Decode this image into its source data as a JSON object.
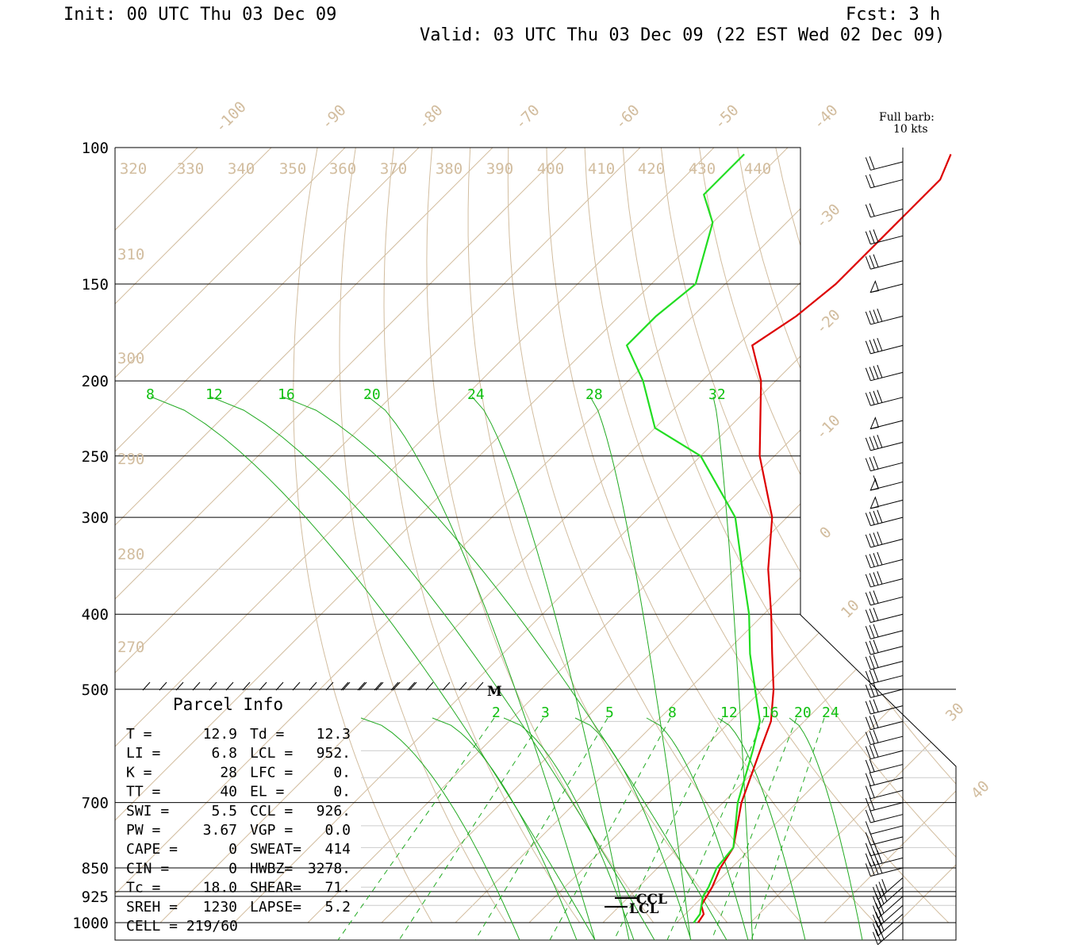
{
  "header": {
    "init": "Init: 00 UTC Thu 03 Dec 09",
    "fcst": "Fcst:    3 h",
    "valid": "Valid: 03 UTC Thu 03 Dec 09 (22 EST Wed 02 Dec 09)"
  },
  "barb_legend": {
    "line1": "Full barb:",
    "line2": "10 kts"
  },
  "pressure_labels": [
    "100",
    "150",
    "200",
    "250",
    "300",
    "400",
    "500",
    "700",
    "850",
    "925",
    "1000"
  ],
  "isotherm_labels": [
    "-100",
    "-90",
    "-80",
    "-70",
    "-60",
    "-50",
    "-40",
    "-30",
    "-20",
    "-10",
    "0",
    "10",
    "30",
    "40"
  ],
  "theta_top_labels": [
    "320",
    "330",
    "340",
    "350",
    "360",
    "370",
    "380",
    "390",
    "400",
    "410",
    "420",
    "430",
    "440"
  ],
  "theta_left_labels": [
    "310",
    "300",
    "290",
    "280",
    "270"
  ],
  "mixing_ratio_upper": [
    "8",
    "12",
    "16",
    "20",
    "24",
    "28",
    "32"
  ],
  "mixing_ratio_lower": [
    "2",
    "3",
    "5",
    "8",
    "12",
    "16",
    "20",
    "24"
  ],
  "markers": {
    "m": "M",
    "ccl": "CCL",
    "lcl": "LCL"
  },
  "parcel": {
    "title": "Parcel Info",
    "rows": [
      [
        "T  =",
        "12.9",
        "Td =",
        "12.3"
      ],
      [
        "LI =",
        "6.8",
        "LCL =",
        "952."
      ],
      [
        "K  =",
        "28",
        "LFC =",
        "0."
      ],
      [
        "TT =",
        "40",
        "EL  =",
        "0."
      ],
      [
        "SWI =",
        "5.5",
        "CCL =",
        "926."
      ],
      [
        "PW =",
        "3.67",
        "VGP =",
        "0.0"
      ],
      [
        "CAPE =",
        "0",
        "SWEAT=",
        "414"
      ],
      [
        "CIN =",
        "0",
        "HWBZ=",
        "3278."
      ],
      [
        "Tc =",
        "18.0",
        "SHEAR=",
        "71."
      ],
      [
        "SREH =",
        "1230",
        "LAPSE=",
        "5.2"
      ],
      [
        "CELL = 219/60",
        "",
        "",
        ""
      ]
    ]
  },
  "colors": {
    "temperature": "#dd0000",
    "dewpoint": "#22dd22",
    "background_lines": "#d2bd9f",
    "mixing_ratio": "#10c010"
  },
  "chart_data": {
    "type": "line",
    "title": "",
    "xlabel": "",
    "ylabel": "",
    "y_scale": "log-pressure (hPa)",
    "ylim": [
      1000,
      100
    ],
    "series": [
      {
        "name": "",
        "kind": "temperature_C",
        "points": [
          [
            1000,
            12.9
          ],
          [
            975,
            12.5
          ],
          [
            950,
            11.0
          ],
          [
            925,
            10.5
          ],
          [
            900,
            10.0
          ],
          [
            850,
            8.5
          ],
          [
            800,
            7.5
          ],
          [
            700,
            2.5
          ],
          [
            600,
            -2.0
          ],
          [
            550,
            -4.5
          ],
          [
            500,
            -8.5
          ],
          [
            450,
            -13.5
          ],
          [
            400,
            -19.0
          ],
          [
            350,
            -25.5
          ],
          [
            300,
            -32.0
          ],
          [
            250,
            -42.0
          ],
          [
            200,
            -52.0
          ],
          [
            180,
            -58.0
          ],
          [
            165,
            -56.0
          ],
          [
            150,
            -55.0
          ],
          [
            125,
            -55.0
          ],
          [
            110,
            -55.0
          ],
          [
            102,
            -57.0
          ]
        ]
      },
      {
        "name": "",
        "kind": "dewpoint_C",
        "points": [
          [
            1000,
            12.3
          ],
          [
            975,
            12.0
          ],
          [
            950,
            11.0
          ],
          [
            925,
            10.0
          ],
          [
            900,
            9.5
          ],
          [
            850,
            8.0
          ],
          [
            800,
            7.5
          ],
          [
            700,
            2.0
          ],
          [
            600,
            -3.0
          ],
          [
            550,
            -6.0
          ],
          [
            500,
            -11.0
          ],
          [
            450,
            -16.5
          ],
          [
            400,
            -22.0
          ],
          [
            350,
            -29.0
          ],
          [
            300,
            -37.0
          ],
          [
            250,
            -50.0
          ],
          [
            230,
            -60.0
          ],
          [
            200,
            -68.0
          ],
          [
            180,
            -75.0
          ],
          [
            165,
            -75.0
          ],
          [
            150,
            -74.0
          ],
          [
            125,
            -80.0
          ],
          [
            115,
            -85.0
          ],
          [
            102,
            -85.0
          ]
        ]
      }
    ],
    "wind_barbs": {
      "note": "barbs plotted along right staff, 10 kts per full barb",
      "levels": [
        100,
        110,
        120,
        130,
        140,
        150,
        165,
        180,
        195,
        210,
        225,
        240,
        255,
        270,
        285,
        300,
        320,
        340,
        360,
        380,
        400,
        420,
        440,
        460,
        480,
        500,
        525,
        550,
        575,
        600,
        625,
        650,
        675,
        700,
        725,
        750,
        775,
        800,
        825,
        850,
        875,
        900,
        925,
        950,
        975,
        1000
      ],
      "speed_kts": [
        20,
        20,
        20,
        30,
        30,
        50,
        40,
        40,
        40,
        40,
        50,
        40,
        30,
        60,
        50,
        40,
        40,
        40,
        40,
        30,
        30,
        30,
        30,
        30,
        30,
        30,
        30,
        30,
        30,
        30,
        20,
        20,
        20,
        20,
        20,
        10,
        20,
        30,
        40,
        40,
        40,
        40,
        30,
        30,
        30,
        30
      ]
    }
  }
}
